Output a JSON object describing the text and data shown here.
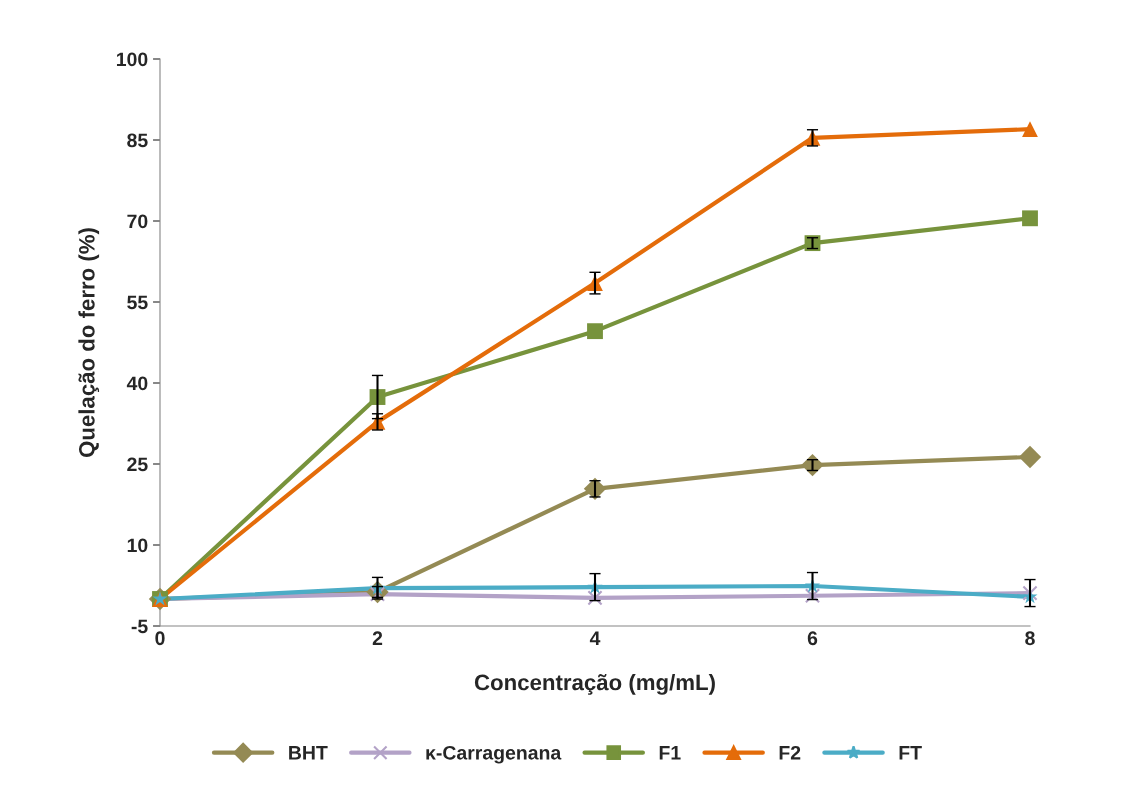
{
  "chart_data": {
    "type": "line",
    "xlabel": "Concentração (mg/mL)",
    "ylabel": "Quelação do ferro (%)",
    "x": [
      0,
      2,
      4,
      6,
      8
    ],
    "xlim": [
      0,
      8
    ],
    "xticks": [
      0,
      2,
      4,
      6,
      8
    ],
    "ylim": [
      -5,
      100
    ],
    "yticks": [
      -5,
      10,
      25,
      40,
      55,
      70,
      85,
      100
    ],
    "grid": false,
    "legend": "bottom",
    "line_style": "solid",
    "series": [
      {
        "name": "BHT",
        "color": "#948a54",
        "marker": "diamond",
        "values": [
          0,
          1.3,
          20.4,
          24.8,
          26.3
        ],
        "errors": [
          null,
          1,
          1.5,
          1,
          null
        ]
      },
      {
        "name": "κ-Carragenana",
        "color": "#b3a2c7",
        "marker": "cross",
        "values": [
          0,
          0.9,
          0.2,
          0.6,
          1.1
        ],
        "errors": [
          null,
          null,
          null,
          null,
          2.5
        ]
      },
      {
        "name": "F1",
        "color": "#77933c",
        "marker": "square",
        "values": [
          0,
          37.4,
          49.6,
          65.9,
          70.5
        ],
        "errors": [
          null,
          4,
          null,
          1,
          null
        ]
      },
      {
        "name": "F2",
        "color": "#e46c0a",
        "marker": "triangle",
        "values": [
          0,
          32.8,
          58.5,
          85.4,
          87
        ],
        "errors": [
          null,
          1.5,
          2,
          1.5,
          null
        ]
      },
      {
        "name": "FT",
        "color": "#4bacc6",
        "marker": "star",
        "values": [
          0,
          2,
          2.2,
          2.4,
          0.4
        ],
        "errors": [
          null,
          2,
          2.5,
          2.5,
          null
        ]
      }
    ]
  }
}
